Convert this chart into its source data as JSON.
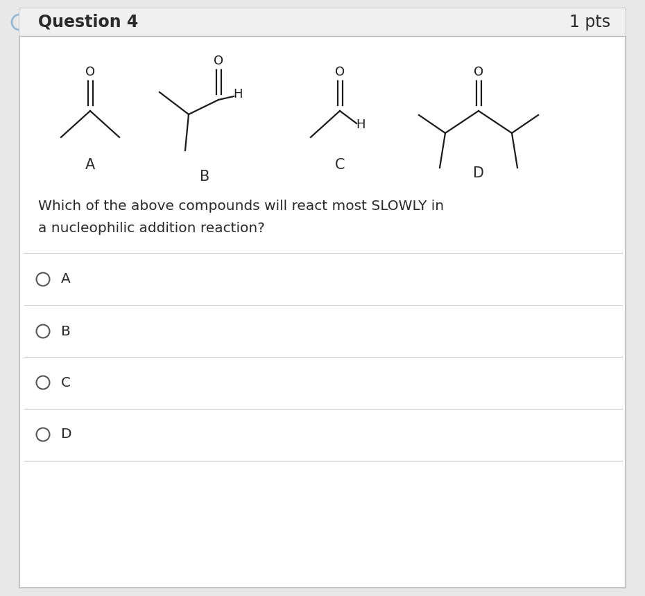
{
  "title": "Question 4",
  "pts": "1 pts",
  "bg_color": "#e8e8e8",
  "card_color": "#ffffff",
  "header_bg": "#f0f0f0",
  "border_color": "#cccccc",
  "question_line1": "Which of the above compounds will react most SLOWLY in",
  "question_line2": "a nucleophilic addition reaction?",
  "options": [
    "A",
    "B",
    "C",
    "D"
  ],
  "title_fontsize": 17,
  "text_fontsize": 14.5,
  "option_fontsize": 14.5,
  "label_fontsize": 15,
  "bond_color": "#1a1a1a",
  "text_color": "#2a2a2a"
}
